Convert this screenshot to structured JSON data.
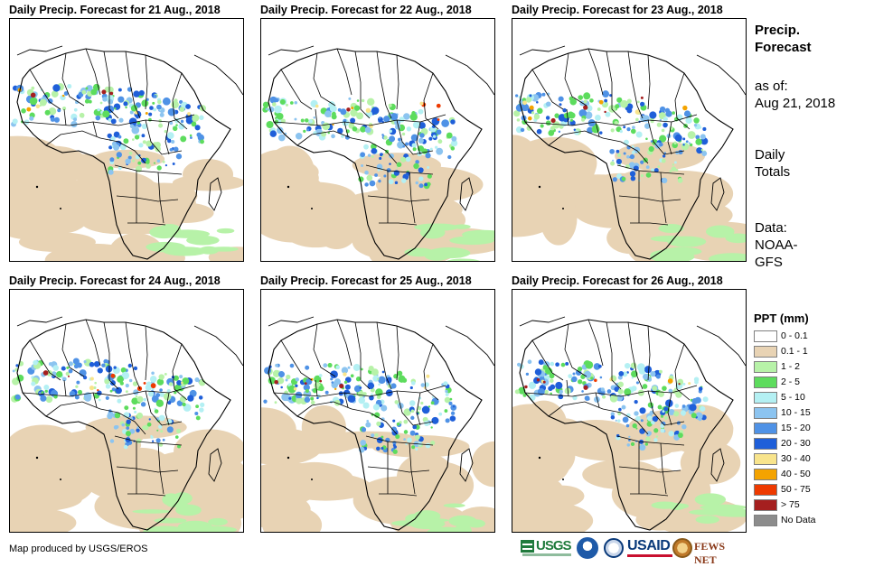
{
  "panels": [
    {
      "title": "Daily Precip. Forecast for 21 Aug., 2018",
      "band_y": 0.0
    },
    {
      "title": "Daily Precip. Forecast for 22 Aug., 2018",
      "band_y": 0.15
    },
    {
      "title": "Daily Precip. Forecast for 23 Aug., 2018",
      "band_y": 0.1
    },
    {
      "title": "Daily Precip. Forecast for 24 Aug., 2018",
      "band_y": 0.05
    },
    {
      "title": "Daily Precip. Forecast for 25 Aug., 2018",
      "band_y": 0.1
    },
    {
      "title": "Daily Precip. Forecast for 26 Aug., 2018",
      "band_y": 0.05
    }
  ],
  "side": {
    "title_line1": "Precip.",
    "title_line2": "Forecast",
    "asof_label": "as of:",
    "asof_date": "Aug 21, 2018",
    "totals_line1": "Daily",
    "totals_line2": "Totals",
    "source_line1": "Data:",
    "source_line2": "NOAA-",
    "source_line3": "GFS"
  },
  "legend": {
    "title": "PPT (mm)",
    "items": [
      {
        "label": "0 - 0.1",
        "color": "#ffffff"
      },
      {
        "label": "0.1 - 1",
        "color": "#e8d3b4"
      },
      {
        "label": "1 - 2",
        "color": "#b7f2a8"
      },
      {
        "label": "2 - 5",
        "color": "#5ddc5d"
      },
      {
        "label": "5 - 10",
        "color": "#b4f0f3"
      },
      {
        "label": "10 - 15",
        "color": "#8cc4f0"
      },
      {
        "label": "15 - 20",
        "color": "#4f92e6"
      },
      {
        "label": "20 - 30",
        "color": "#1f5fd9"
      },
      {
        "label": "30 - 40",
        "color": "#f8e48c"
      },
      {
        "label": "40 - 50",
        "color": "#f4a300"
      },
      {
        "label": "50 - 75",
        "color": "#ee3a00"
      },
      {
        "label": "> 75",
        "color": "#a51f1f"
      },
      {
        "label": "No Data",
        "color": "#8c8c8c"
      }
    ]
  },
  "credit": "Map produced by USGS/EROS",
  "logos": {
    "usgs": "USGS",
    "usaid": "USAID",
    "fews": "FEWS NET"
  }
}
